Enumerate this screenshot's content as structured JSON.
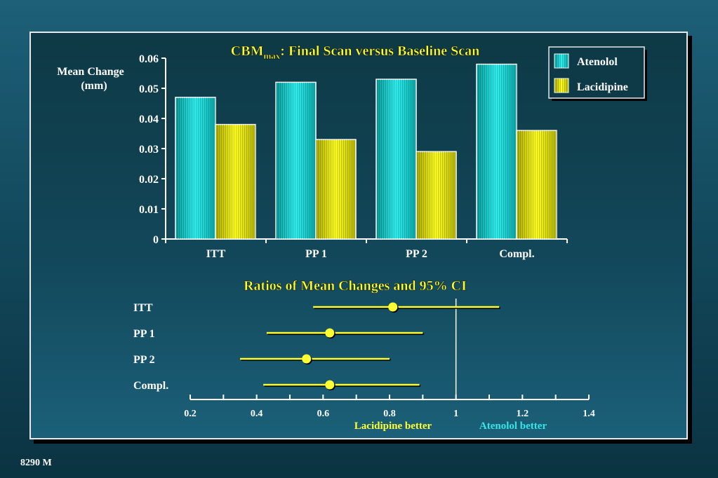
{
  "footer_code": "8290 M",
  "colors": {
    "atenolol": "#22d8d8",
    "lacidipine": "#e6e600",
    "title": "#ffff33",
    "ci": "#ffff33",
    "axis": "#ffffff",
    "atenolol_better_text": "#33e6e6"
  },
  "chart_data": [
    {
      "type": "bar",
      "title": "CBM",
      "title_subscript": "max",
      "title_rest": ": Final Scan versus Baseline Scan",
      "ylabel_line1": "Mean  Change",
      "ylabel_line2": "(mm)",
      "categories": [
        "ITT",
        "PP 1",
        "PP 2",
        "Compl."
      ],
      "series": [
        {
          "name": "Atenolol",
          "values": [
            0.047,
            0.052,
            0.053,
            0.058
          ]
        },
        {
          "name": "Lacidipine",
          "values": [
            0.038,
            0.033,
            0.029,
            0.036
          ]
        }
      ],
      "ylim": [
        0,
        0.06
      ],
      "yticks": [
        "0",
        "0.01",
        "0.02",
        "0.03",
        "0.04",
        "0.05",
        "0.06"
      ],
      "legend_position": "top-right",
      "grid": false
    },
    {
      "type": "scatter",
      "title": "Ratios of Mean Changes and 95% CI",
      "rows": [
        {
          "label": "ITT",
          "ratio": 0.81,
          "lower": 0.57,
          "upper": 1.13
        },
        {
          "label": "PP 1",
          "ratio": 0.62,
          "lower": 0.43,
          "upper": 0.9
        },
        {
          "label": "PP 2",
          "ratio": 0.55,
          "lower": 0.35,
          "upper": 0.8
        },
        {
          "label": "Compl.",
          "ratio": 0.62,
          "lower": 0.42,
          "upper": 0.89
        }
      ],
      "xlim": [
        0.2,
        1.4
      ],
      "xticks": [
        "0.2",
        "0.4",
        "0.6",
        "0.8",
        "1",
        "1.2",
        "1.4"
      ],
      "reference_line": 1,
      "left_note": "Lacidipine better",
      "right_note": "Atenolol better"
    }
  ]
}
